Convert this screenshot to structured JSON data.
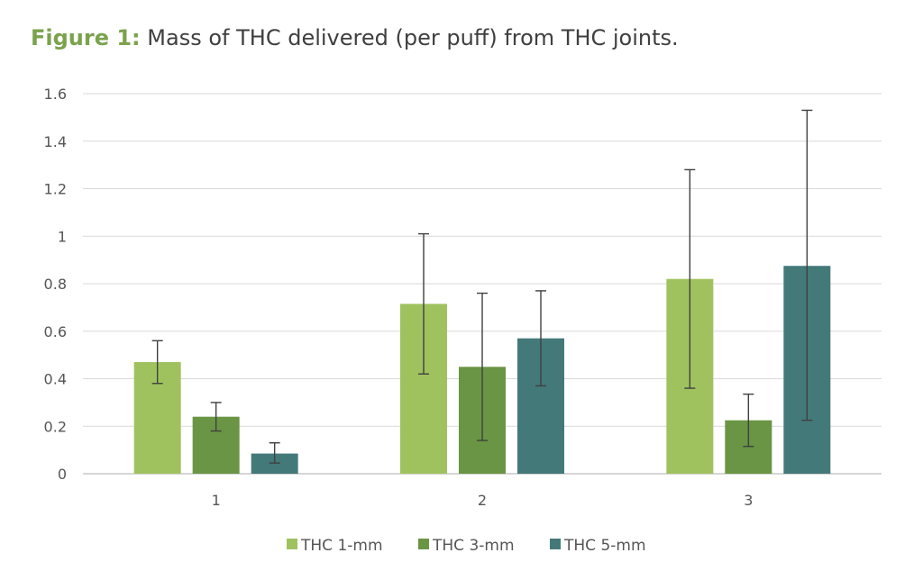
{
  "figure": {
    "label": "Figure 1:",
    "caption": "Mass of THC delivered (per puff) from THC joints."
  },
  "chart_data": {
    "type": "bar",
    "title": "Mass of THC delivered (per puff) from THC joints.",
    "xlabel": "",
    "ylabel": "",
    "categories": [
      "1",
      "2",
      "3"
    ],
    "ylim": [
      0,
      1.6
    ],
    "yticks": [
      "0",
      "0.2",
      "0.4",
      "0.6",
      "0.8",
      "1",
      "1.2",
      "1.4",
      "1.6"
    ],
    "grid": true,
    "legend_position": "bottom",
    "series": [
      {
        "name": "THC 1-mm",
        "color": "#9fc25e",
        "values": [
          0.47,
          0.715,
          0.82
        ],
        "err_low": [
          0.38,
          0.42,
          0.36
        ],
        "err_high": [
          0.56,
          1.01,
          1.28
        ]
      },
      {
        "name": "THC 3-mm",
        "color": "#6a9544",
        "values": [
          0.24,
          0.45,
          0.225
        ],
        "err_low": [
          0.18,
          0.14,
          0.115
        ],
        "err_high": [
          0.3,
          0.76,
          0.335
        ]
      },
      {
        "name": "THC 5-mm",
        "color": "#44797a",
        "values": [
          0.085,
          0.57,
          0.875
        ],
        "err_low": [
          0.045,
          0.37,
          0.225
        ],
        "err_high": [
          0.13,
          0.77,
          1.53
        ]
      }
    ]
  }
}
